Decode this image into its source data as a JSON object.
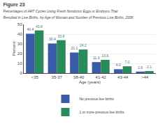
{
  "chart_data": {
    "type": "bar",
    "title": "Figure 23",
    "subtitle": [
      "Percentages of ART Cycles Using Fresh Nondonor Eggs or Embryos That",
      "Resulted in Live Births, by Age of Woman and Number of Previous Live Births, 2008"
    ],
    "categories": [
      "<35",
      "35-37",
      "38-40",
      "41-42",
      "43-44",
      ">44"
    ],
    "series": [
      {
        "name": "No previous live births",
        "color": "#3a5ca8",
        "values": [
          40.4,
          30.4,
          21.1,
          11.3,
          4.0,
          1.6
        ],
        "value_labels": [
          "40.4",
          "30.4",
          "21.1",
          "11.3",
          "4.0",
          "1.6"
        ]
      },
      {
        "name": "1 or more previous live births",
        "color": "#2a8a5a",
        "values": [
          43.8,
          33.8,
          24.2,
          13.6,
          7.0,
          2.1
        ],
        "value_labels": [
          "43.8",
          "33.8",
          "24.2",
          "13.6",
          "7.0",
          "2.1"
        ]
      }
    ],
    "xlabel": "Age (years)",
    "ylabel": "Percent",
    "ylim": [
      0,
      50
    ],
    "yticks": [
      0,
      10,
      20,
      30,
      40,
      50
    ],
    "grid": true,
    "legend": "bottom",
    "data_labels": true
  }
}
